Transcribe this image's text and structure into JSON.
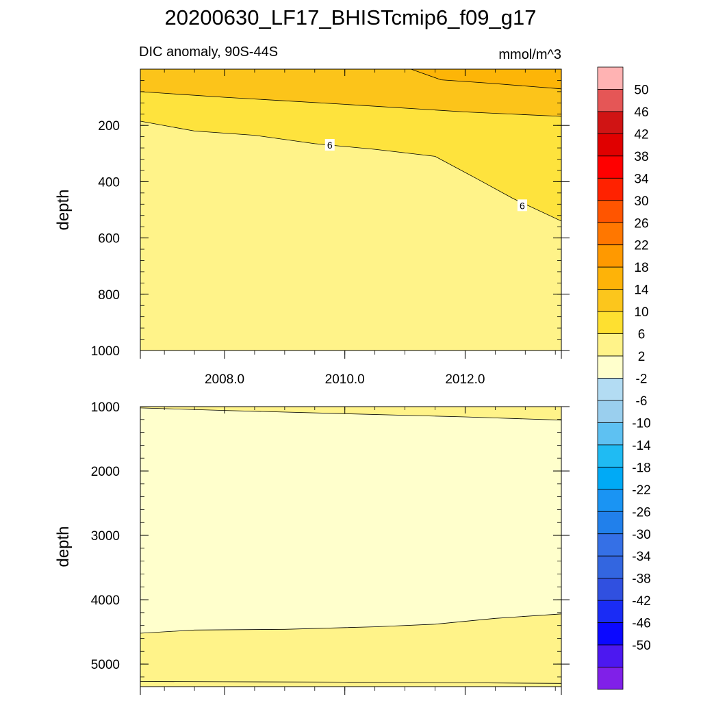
{
  "chart_data": {
    "type": "contour",
    "title": "20200630_LF17_BHISTcmip6_f09_g17",
    "subtitle": "DIC anomaly, 90S-44S",
    "units": "mmol/m^3",
    "x_range": [
      2006.6,
      2013.6
    ],
    "x_ticks": [
      "2008.0",
      "2010.0",
      "2012.0"
    ],
    "x_tick_values": [
      2008.0,
      2010.0,
      2012.0
    ],
    "panels": [
      {
        "ylabel": "depth",
        "ylim": [
          0,
          1000
        ],
        "y_ticks": [
          "200",
          "400",
          "600",
          "800",
          "1000"
        ],
        "y_tick_values": [
          200,
          400,
          600,
          800,
          1000
        ],
        "fill_regions": [
          {
            "level_band": "10 to 14",
            "color": "#fcc41a"
          },
          {
            "level_band": "14 to 18",
            "color": "#fdb507"
          },
          {
            "level_band": "6 to 10",
            "color": "#fee33d"
          },
          {
            "level_band": "2 to 6",
            "color": "#fff389"
          }
        ],
        "contours": [
          {
            "level": 10,
            "x": [
              2006.6,
              2008.0,
              2010.0,
              2012.0,
              2013.6
            ],
            "y": [
              80,
              100,
              125,
              152,
              168
            ]
          },
          {
            "level": 6,
            "label": "6",
            "x": [
              2006.6,
              2007.5,
              2008.5,
              2009.5,
              2010.5,
              2011.5,
              2012.2,
              2012.8,
              2013.6
            ],
            "y": [
              185,
              220,
              235,
              265,
              285,
              310,
              390,
              460,
              540
            ]
          },
          {
            "level": 14,
            "x": [
              2011.1,
              2011.6,
              2012.4,
              2013.6
            ],
            "y": [
              0,
              38,
              50,
              70
            ]
          }
        ],
        "contour_labels": [
          {
            "text": "6",
            "x": 2009.75,
            "y": 270
          },
          {
            "text": "6",
            "x": 2012.95,
            "y": 485
          }
        ]
      },
      {
        "ylabel": "depth",
        "ylim": [
          1000,
          5350
        ],
        "y_ticks": [
          "1000",
          "2000",
          "3000",
          "4000",
          "5000"
        ],
        "y_tick_values": [
          1000,
          2000,
          3000,
          4000,
          5000
        ],
        "fill_regions": [
          {
            "level_band": "-2 to 2",
            "color": "#ffffcc"
          },
          {
            "level_band": "2 to 6",
            "color": "#fff389"
          }
        ],
        "contours": [
          {
            "level": 2,
            "x": [
              2006.6,
              2008.0,
              2010.0,
              2012.0,
              2013.6
            ],
            "y": [
              1020,
              1060,
              1110,
              1160,
              1210
            ]
          },
          {
            "level": 2,
            "x": [
              2006.6,
              2007.5,
              2009.0,
              2010.5,
              2011.5,
              2012.5,
              2013.6
            ],
            "y": [
              4520,
              4470,
              4460,
              4420,
              4380,
              4290,
              4220
            ]
          },
          {
            "level": 6,
            "x": [
              2006.6,
              2008.0,
              2010.0,
              2012.0,
              2013.6
            ],
            "y": [
              5270,
              5275,
              5280,
              5290,
              5300
            ]
          }
        ]
      }
    ],
    "colorbar": {
      "labels": [
        "50",
        "46",
        "42",
        "38",
        "34",
        "30",
        "26",
        "22",
        "18",
        "14",
        "10",
        "6",
        "2",
        "-2",
        "-6",
        "-10",
        "-14",
        "-18",
        "-22",
        "-26",
        "-30",
        "-34",
        "-38",
        "-42",
        "-46",
        "-50"
      ],
      "colors": [
        "#ffb3b3",
        "#e55656",
        "#d01414",
        "#e00000",
        "#ff0000",
        "#ff2200",
        "#ff5500",
        "#ff7700",
        "#ff9900",
        "#feb308",
        "#fcc61c",
        "#fee030",
        "#fff389",
        "#ffffcc",
        "#b3dcf3",
        "#9acfee",
        "#5ec1f2",
        "#1fbbf3",
        "#00aaf6",
        "#1a94f3",
        "#2180eb",
        "#3570e6",
        "#3366e0",
        "#3050e0",
        "#1a2cf5",
        "#0b08ff",
        "#4c18f0",
        "#8020e8"
      ]
    }
  }
}
